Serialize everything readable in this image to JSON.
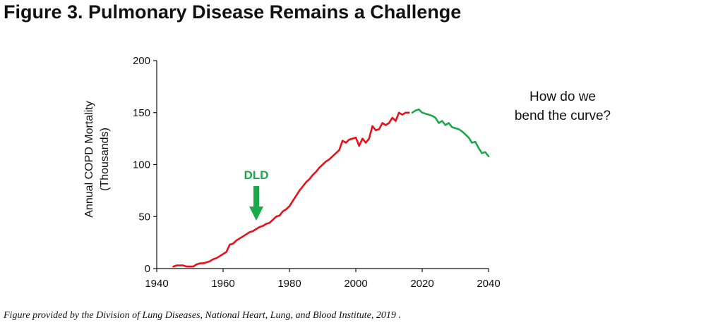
{
  "figure_title": "Figure 3. Pulmonary Disease Remains a Challenge",
  "caption": "Figure provided by the Division of Lung Diseases, National Heart, Lung, and Blood Institute, 2019 .",
  "colors": {
    "historical": "#e8111b",
    "projected": "#1aa84b",
    "annotation": "#1aa84b",
    "axis": "#111111"
  },
  "chart_data": {
    "type": "line",
    "title": "",
    "xlabel": "",
    "ylabel": [
      "Annual COPD Mortality",
      "(Thousands)"
    ],
    "xlim": [
      1940,
      2040
    ],
    "ylim": [
      0,
      200
    ],
    "xticks": [
      "1940",
      "1960",
      "1980",
      "2000",
      "2020",
      "2040"
    ],
    "yticks": [
      "0",
      "50",
      "100",
      "150",
      "200"
    ],
    "grid": false,
    "series": [
      {
        "name": "",
        "x": [
          1945,
          1946,
          1947,
          1948,
          1949,
          1950,
          1951,
          1952,
          1953,
          1954,
          1955,
          1956,
          1957,
          1958,
          1959,
          1960,
          1961,
          1962,
          1963,
          1964,
          1965,
          1966,
          1967,
          1968,
          1969,
          1970,
          1971,
          1972,
          1973,
          1974,
          1975,
          1976,
          1977,
          1978,
          1979,
          1980,
          1981,
          1982,
          1983,
          1984,
          1985,
          1986,
          1987,
          1988,
          1989,
          1990,
          1991,
          1992,
          1993,
          1994,
          1995,
          1996,
          1997,
          1998,
          1999,
          2000,
          2001,
          2002,
          2003,
          2004,
          2005,
          2006,
          2007,
          2008,
          2009,
          2010,
          2011,
          2012,
          2013,
          2014,
          2015,
          2016
        ],
        "values": [
          2,
          3,
          3,
          3,
          2,
          2,
          2,
          4,
          5,
          5,
          6,
          7,
          9,
          10,
          12,
          14,
          16,
          23,
          24,
          27,
          29,
          31,
          33,
          35,
          36,
          38,
          40,
          41,
          43,
          44,
          47,
          50,
          51,
          55,
          57,
          60,
          65,
          70,
          75,
          79,
          83,
          86,
          90,
          93,
          97,
          100,
          103,
          105,
          108,
          111,
          114,
          123,
          121,
          124,
          125,
          126,
          118,
          125,
          121,
          125,
          137,
          133,
          134,
          140,
          138,
          140,
          145,
          142,
          150,
          148,
          150,
          150
        ]
      },
      {
        "name": "",
        "x": [
          2017,
          2018,
          2019,
          2020,
          2021,
          2022,
          2023,
          2024,
          2025,
          2026,
          2027,
          2028,
          2029,
          2030,
          2031,
          2032,
          2033,
          2034,
          2035,
          2036,
          2037,
          2038,
          2039,
          2040
        ],
        "values": [
          150,
          152,
          153,
          150,
          149,
          148,
          147,
          145,
          140,
          142,
          138,
          140,
          136,
          135,
          134,
          132,
          129,
          126,
          121,
          122,
          116,
          111,
          112,
          108
        ]
      }
    ],
    "annotations": {
      "arrow_label": "DLD",
      "arrow_x": 1970,
      "callout": [
        "How do we",
        "bend the curve?"
      ]
    }
  }
}
